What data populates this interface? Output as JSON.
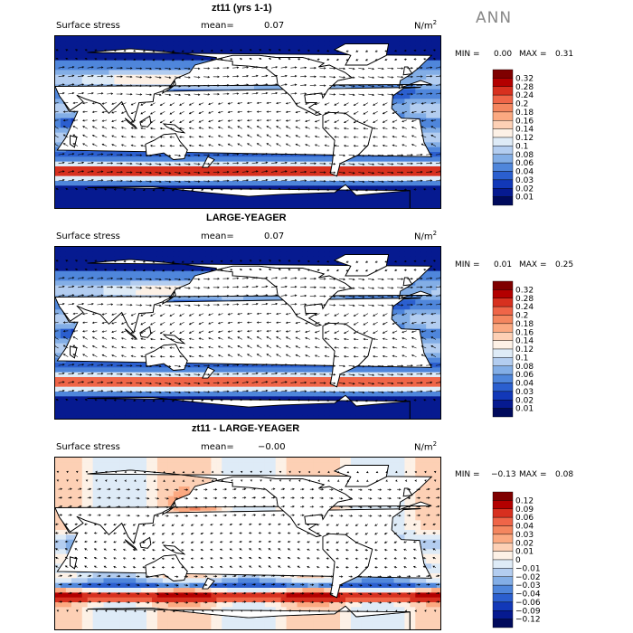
{
  "season": "ANN",
  "panels": [
    {
      "title": "zt11 (yrs 1-1)",
      "field_label": "Surface stress",
      "mean_label": "mean=",
      "mean_value": "0.07",
      "units": "N/m",
      "units_sup": "2",
      "min_label": "MIN =",
      "min_value": "0.00",
      "max_label": "MAX =",
      "max_value": "0.31",
      "colorbar": [
        "0.32",
        "0.28",
        "0.24",
        "0.2",
        "0.18",
        "0.16",
        "0.14",
        "0.12",
        "0.1",
        "0.08",
        "0.06",
        "0.04",
        "0.03",
        "0.02",
        "0.01"
      ]
    },
    {
      "title": "LARGE-YEAGER",
      "field_label": "Surface stress",
      "mean_label": "mean=",
      "mean_value": "0.07",
      "units": "N/m",
      "units_sup": "2",
      "min_label": "MIN =",
      "min_value": "0.01",
      "max_label": "MAX =",
      "max_value": "0.25",
      "colorbar": [
        "0.32",
        "0.28",
        "0.24",
        "0.2",
        "0.18",
        "0.16",
        "0.14",
        "0.12",
        "0.1",
        "0.08",
        "0.06",
        "0.04",
        "0.03",
        "0.02",
        "0.01"
      ]
    },
    {
      "title": "zt11 - LARGE-YEAGER",
      "field_label": "Surface stress",
      "mean_label": "mean=",
      "mean_value": "−0.00",
      "units": "N/m",
      "units_sup": "2",
      "min_label": "MIN =",
      "min_value": "−0.13",
      "max_label": "MAX =",
      "max_value": "0.08",
      "colorbar": [
        "0.12",
        "0.09",
        "0.06",
        "0.04",
        "0.03",
        "0.02",
        "0.01",
        "0",
        "−0.01",
        "−0.02",
        "−0.03",
        "−0.04",
        "−0.06",
        "−0.09",
        "−0.12"
      ]
    }
  ],
  "colors": {
    "absolute_scale": [
      "#7f0000",
      "#b30000",
      "#d7301f",
      "#ef6548",
      "#f4865f",
      "#fba981",
      "#fdd0b5",
      "#fdf1e6",
      "#deebf7",
      "#b3cdf0",
      "#83aee6",
      "#4f86db",
      "#2b5fcf",
      "#1238b8",
      "#061a90",
      "#000a5c"
    ],
    "difference_scale": [
      "#7f0000",
      "#b30000",
      "#d7301f",
      "#ef6548",
      "#f4865f",
      "#fba981",
      "#fdd0b5",
      "#fdf1e6",
      "#deebf7",
      "#b3cdf0",
      "#83aee6",
      "#4f86db",
      "#2b5fcf",
      "#1238b8",
      "#061a90",
      "#000a5c"
    ],
    "land": "#ffffff",
    "coast": "#000000"
  }
}
